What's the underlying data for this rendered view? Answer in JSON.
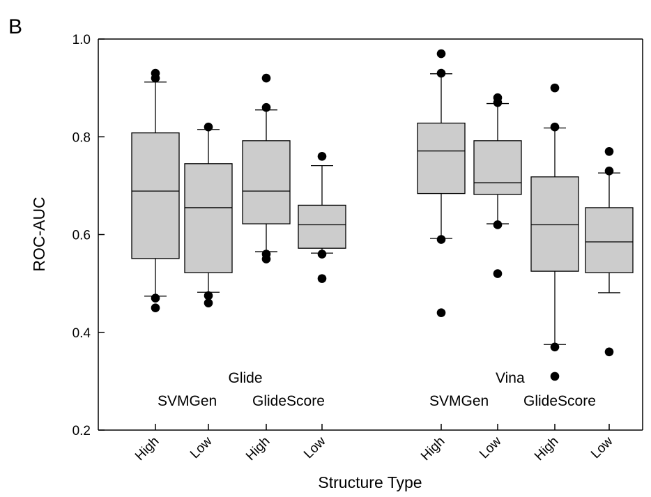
{
  "chart_data": {
    "type": "box",
    "panel_label": "B",
    "ylabel": "ROC-AUC",
    "xlabel": "Structure Type",
    "ylim": [
      0.2,
      1.0
    ],
    "yticks": [
      "0.2",
      "0.4",
      "0.6",
      "0.8",
      "1.0"
    ],
    "groups": [
      {
        "label": "Glide",
        "sublabels": [
          "SVMGen",
          "GlideScore"
        ],
        "boxes": [
          {
            "category": "High",
            "q1": 0.551,
            "median": 0.689,
            "q3": 0.808,
            "whisker_low": 0.474,
            "whisker_high": 0.912,
            "outliers": [
              0.45,
              0.47,
              0.92,
              0.93
            ]
          },
          {
            "category": "Low",
            "q1": 0.522,
            "median": 0.655,
            "q3": 0.745,
            "whisker_low": 0.482,
            "whisker_high": 0.815,
            "outliers": [
              0.46,
              0.475,
              0.82
            ]
          },
          {
            "category": "High",
            "q1": 0.622,
            "median": 0.689,
            "q3": 0.792,
            "whisker_low": 0.565,
            "whisker_high": 0.855,
            "outliers": [
              0.55,
              0.56,
              0.86,
              0.92
            ]
          },
          {
            "category": "Low",
            "q1": 0.572,
            "median": 0.62,
            "q3": 0.66,
            "whisker_low": 0.562,
            "whisker_high": 0.741,
            "outliers": [
              0.51,
              0.56,
              0.76
            ]
          }
        ]
      },
      {
        "label": "Vina",
        "sublabels": [
          "SVMGen",
          "GlideScore"
        ],
        "boxes": [
          {
            "category": "High",
            "q1": 0.684,
            "median": 0.771,
            "q3": 0.828,
            "whisker_low": 0.592,
            "whisker_high": 0.929,
            "outliers": [
              0.44,
              0.59,
              0.93,
              0.97
            ]
          },
          {
            "category": "Low",
            "q1": 0.682,
            "median": 0.706,
            "q3": 0.792,
            "whisker_low": 0.622,
            "whisker_high": 0.868,
            "outliers": [
              0.52,
              0.62,
              0.87,
              0.88
            ]
          },
          {
            "category": "High",
            "q1": 0.525,
            "median": 0.62,
            "q3": 0.718,
            "whisker_low": 0.375,
            "whisker_high": 0.818,
            "outliers": [
              0.31,
              0.37,
              0.82,
              0.9
            ]
          },
          {
            "category": "Low",
            "q1": 0.522,
            "median": 0.585,
            "q3": 0.655,
            "whisker_low": 0.481,
            "whisker_high": 0.726,
            "outliers": [
              0.36,
              0.73,
              0.77
            ]
          }
        ]
      }
    ],
    "box_fill": "#cccccc",
    "box_stroke": "#000000",
    "outlier_color": "#000000",
    "grid": false
  }
}
